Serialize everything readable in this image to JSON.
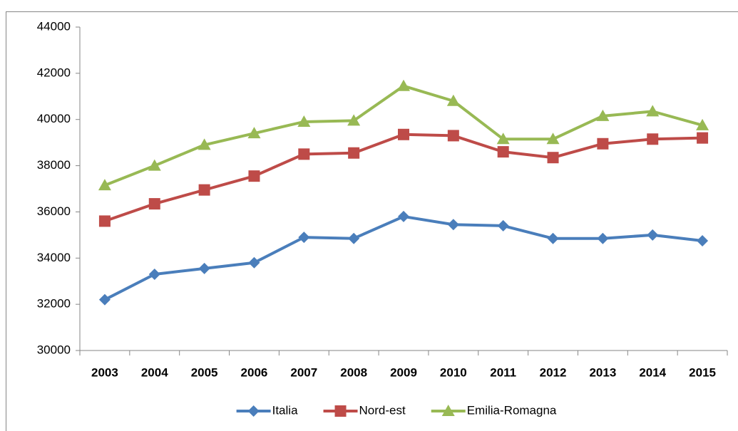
{
  "chart_data": {
    "type": "line",
    "categories": [
      "2003",
      "2004",
      "2005",
      "2006",
      "2007",
      "2008",
      "2009",
      "2010",
      "2011",
      "2012",
      "2013",
      "2014",
      "2015"
    ],
    "series": [
      {
        "name": "Italia",
        "color": "#4a7ebb",
        "marker": "diamond",
        "values": [
          32200,
          33300,
          33550,
          33800,
          34900,
          34850,
          35800,
          35450,
          35400,
          34850,
          34850,
          35000,
          34750
        ]
      },
      {
        "name": "Nord-est",
        "color": "#be4b48",
        "marker": "square",
        "values": [
          35600,
          36350,
          36950,
          37550,
          38500,
          38550,
          39350,
          39300,
          38600,
          38350,
          38950,
          39150,
          39200
        ]
      },
      {
        "name": "Emilia-Romagna",
        "color": "#98b954",
        "marker": "triangle",
        "values": [
          37150,
          38000,
          38900,
          39400,
          39900,
          39950,
          41450,
          40800,
          39150,
          39150,
          40150,
          40350,
          39750
        ]
      }
    ],
    "ylim": [
      30000,
      44000
    ],
    "yticks": [
      30000,
      32000,
      34000,
      36000,
      38000,
      40000,
      42000,
      44000
    ],
    "grid": false,
    "legend": "bottom"
  }
}
